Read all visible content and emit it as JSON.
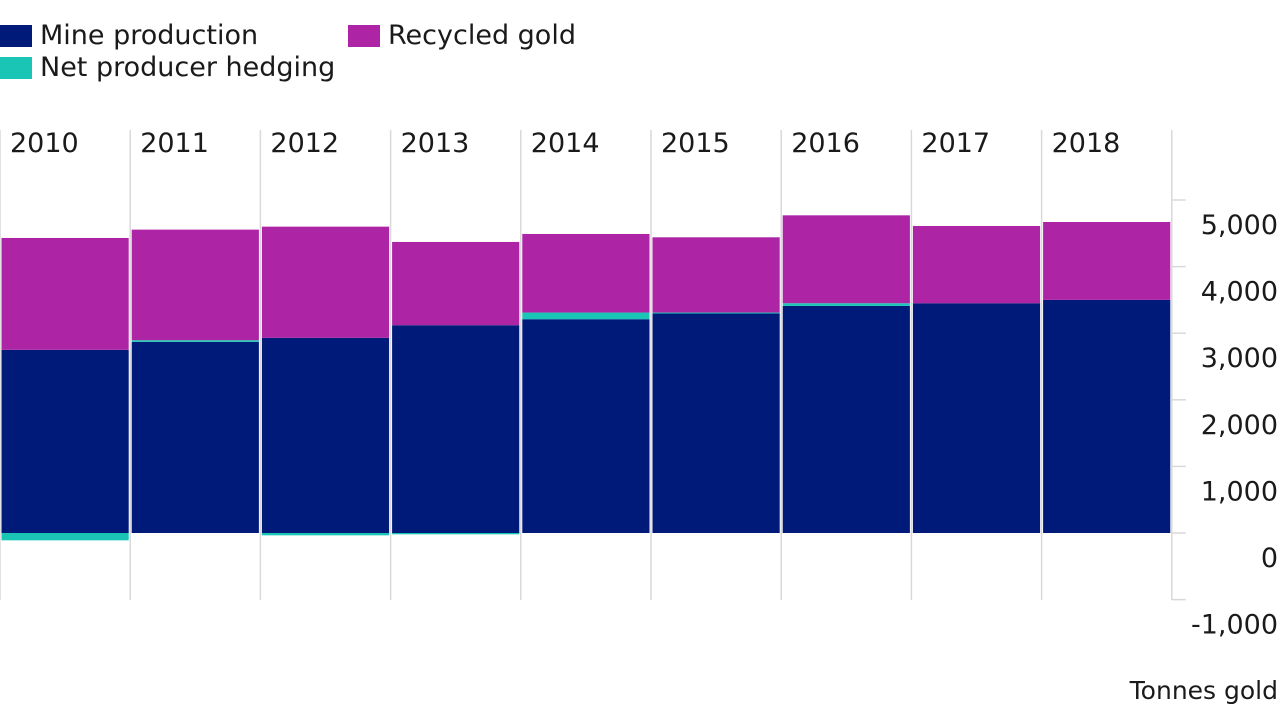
{
  "chart_data": {
    "type": "bar",
    "stacked": true,
    "categories": [
      "2010",
      "2011",
      "2012",
      "2013",
      "2014",
      "2015",
      "2016",
      "2017",
      "2018"
    ],
    "series": [
      {
        "name": "Mine production",
        "color": "#001a7a",
        "values": [
          2750,
          2870,
          2930,
          3120,
          3210,
          3300,
          3410,
          3450,
          3500
        ]
      },
      {
        "name": "Net producer hedging",
        "color": "#1bc5b5",
        "values": [
          -110,
          25,
          -35,
          -20,
          100,
          10,
          40,
          0,
          0
        ]
      },
      {
        "name": "Recycled gold",
        "color": "#ad24a5",
        "values": [
          1680,
          1660,
          1670,
          1250,
          1180,
          1130,
          1320,
          1160,
          1170
        ]
      }
    ],
    "ylim": [
      -1000,
      5500
    ],
    "yticks": [
      -1000,
      0,
      1000,
      2000,
      3000,
      4000,
      5000
    ],
    "ytick_labels": [
      "-1,000",
      "0",
      "1,000",
      "2,000",
      "3,000",
      "4,000",
      "5,000"
    ],
    "y_axis_position": "right",
    "unit_label": "Tonnes gold",
    "legend_position": "top-left"
  }
}
